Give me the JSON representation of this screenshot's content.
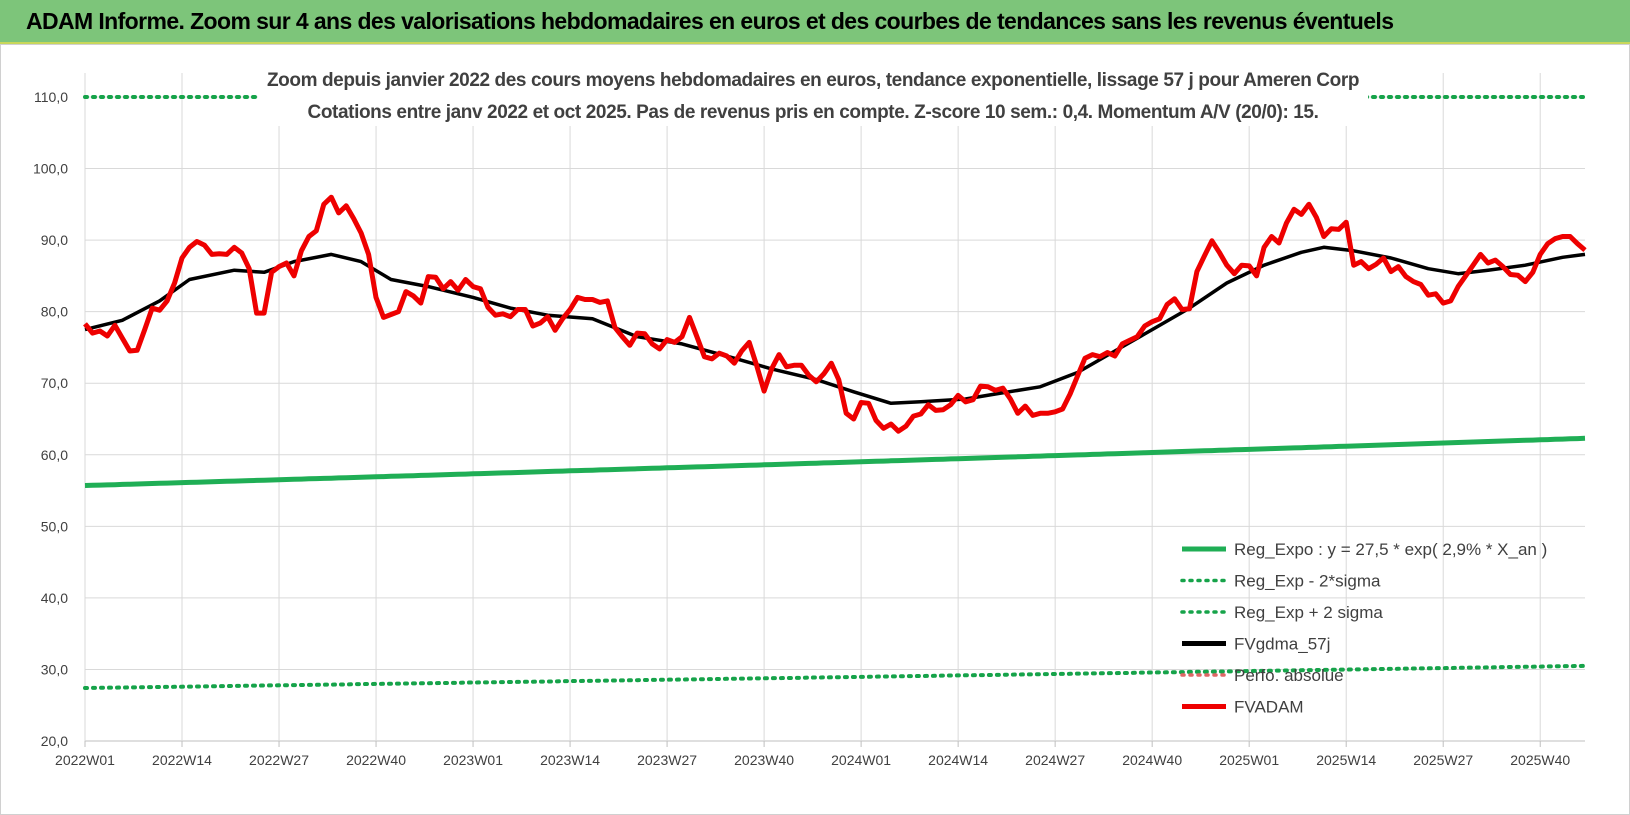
{
  "header": {
    "title": "ADAM Informe. Zoom sur 4 ans des valorisations hebdomadaires en euros et des courbes de tendances sans les revenus éventuels"
  },
  "chart_data": {
    "type": "line",
    "title_line1": "Zoom depuis janvier 2022 des cours moyens hebdomadaires en euros, tendance exponentielle, lissage 57 j pour Ameren Corp",
    "title_line2": "Cotations entre janv 2022 et oct 2025. Pas de revenus pris en compte. Z-score 10 sem.: 0,4. Momentum A/V (20/0): 15.",
    "ylim": [
      20,
      110
    ],
    "y_ticks": [
      "20,0",
      "30,0",
      "40,0",
      "50,0",
      "60,0",
      "70,0",
      "80,0",
      "90,0",
      "100,0",
      "110,0"
    ],
    "x_ticks": [
      "2022W01",
      "2022W14",
      "2022W27",
      "2022W40",
      "2023W01",
      "2023W14",
      "2023W27",
      "2023W40",
      "2024W01",
      "2024W14",
      "2024W27",
      "2024W40",
      "2025W01",
      "2025W14",
      "2025W27",
      "2025W40"
    ],
    "x_tick_weeks": [
      0,
      13,
      26,
      39,
      52,
      65,
      78,
      91,
      104,
      117,
      130,
      143,
      156,
      169,
      182,
      195
    ],
    "n_weeks": 202,
    "colors": {
      "reg": "#1fae55",
      "reg_dotted": "#16a34a",
      "fvgdma": "#000000",
      "perfo": "#e06666",
      "fvadam": "#ee0000",
      "grid": "#d9d9d9"
    },
    "series": [
      {
        "name": "Reg_Expo : y = 27,5 * exp( 2,9% * X_an )",
        "style": "solid",
        "color": "#1fae55",
        "start": 55.7,
        "end": 62.3
      },
      {
        "name": "Reg_Exp - 2*sigma",
        "style": "dotted",
        "color": "#16a34a",
        "start": 27.4,
        "end": 30.5
      },
      {
        "name": "Reg_Exp + 2 sigma",
        "style": "dotted",
        "color": "#16a34a",
        "start": 110.0,
        "end": 110.0
      },
      {
        "name": "FVgdma_57j",
        "style": "solid",
        "color": "#000000",
        "points": [
          [
            0,
            77.5
          ],
          [
            5,
            78.8
          ],
          [
            10,
            81.5
          ],
          [
            14,
            84.5
          ],
          [
            20,
            85.8
          ],
          [
            24,
            85.5
          ],
          [
            28,
            87.0
          ],
          [
            33,
            88.0
          ],
          [
            37,
            87.0
          ],
          [
            41,
            84.5
          ],
          [
            46,
            83.5
          ],
          [
            52,
            82.0
          ],
          [
            57,
            80.5
          ],
          [
            62,
            79.5
          ],
          [
            68,
            79.0
          ],
          [
            74,
            76.5
          ],
          [
            80,
            75.5
          ],
          [
            87,
            73.5
          ],
          [
            92,
            72.0
          ],
          [
            98,
            70.5
          ],
          [
            103,
            68.8
          ],
          [
            108,
            67.2
          ],
          [
            112,
            67.4
          ],
          [
            118,
            67.8
          ],
          [
            122,
            68.5
          ],
          [
            128,
            69.5
          ],
          [
            133,
            71.5
          ],
          [
            138,
            74.5
          ],
          [
            143,
            77.5
          ],
          [
            148,
            80.5
          ],
          [
            153,
            84.0
          ],
          [
            158,
            86.5
          ],
          [
            163,
            88.3
          ],
          [
            166,
            89.0
          ],
          [
            170,
            88.5
          ],
          [
            175,
            87.5
          ],
          [
            180,
            86.0
          ],
          [
            184,
            85.3
          ],
          [
            188,
            85.8
          ],
          [
            193,
            86.5
          ],
          [
            198,
            87.6
          ],
          [
            201,
            88.0
          ]
        ]
      },
      {
        "name": "Perfo. absolue",
        "style": "dotted",
        "color": "#e06666"
      },
      {
        "name": "FVADAM",
        "style": "solid",
        "color": "#ee0000",
        "points": [
          [
            0,
            78.3
          ],
          [
            1,
            77.0
          ],
          [
            2,
            77.3
          ],
          [
            3,
            76.6
          ],
          [
            4,
            78.1
          ],
          [
            5,
            76.3
          ],
          [
            6,
            74.5
          ],
          [
            7,
            74.6
          ],
          [
            8,
            77.5
          ],
          [
            9,
            80.5
          ],
          [
            10,
            80.2
          ],
          [
            11,
            81.5
          ],
          [
            12,
            84.0
          ],
          [
            13,
            87.5
          ],
          [
            14,
            89.0
          ],
          [
            15,
            89.8
          ],
          [
            16,
            89.3
          ],
          [
            17,
            88.0
          ],
          [
            18,
            88.1
          ],
          [
            19,
            88.0
          ],
          [
            20,
            89.0
          ],
          [
            21,
            88.2
          ],
          [
            22,
            86.0
          ],
          [
            23,
            79.8
          ],
          [
            24,
            79.8
          ],
          [
            25,
            85.5
          ],
          [
            26,
            86.3
          ],
          [
            27,
            86.8
          ],
          [
            28,
            85.0
          ],
          [
            29,
            88.5
          ],
          [
            30,
            90.5
          ],
          [
            31,
            91.3
          ],
          [
            32,
            95.0
          ],
          [
            33,
            96.0
          ],
          [
            34,
            93.8
          ],
          [
            35,
            94.8
          ],
          [
            36,
            93.0
          ],
          [
            37,
            91.0
          ],
          [
            38,
            88.0
          ],
          [
            39,
            82.0
          ],
          [
            40,
            79.2
          ],
          [
            41,
            79.6
          ],
          [
            42,
            80.0
          ],
          [
            43,
            82.8
          ],
          [
            44,
            82.2
          ],
          [
            45,
            81.2
          ],
          [
            46,
            84.9
          ],
          [
            47,
            84.8
          ],
          [
            48,
            83.2
          ],
          [
            49,
            84.2
          ],
          [
            50,
            83.0
          ],
          [
            51,
            84.5
          ],
          [
            52,
            83.5
          ],
          [
            53,
            83.2
          ],
          [
            54,
            80.6
          ],
          [
            55,
            79.5
          ],
          [
            56,
            79.7
          ],
          [
            57,
            79.3
          ],
          [
            58,
            80.3
          ],
          [
            59,
            80.3
          ],
          [
            60,
            78.0
          ],
          [
            61,
            78.4
          ],
          [
            62,
            79.3
          ],
          [
            63,
            77.4
          ],
          [
            64,
            79.0
          ],
          [
            65,
            80.3
          ],
          [
            66,
            82.0
          ],
          [
            67,
            81.7
          ],
          [
            68,
            81.7
          ],
          [
            69,
            81.3
          ],
          [
            70,
            81.5
          ],
          [
            71,
            77.8
          ],
          [
            72,
            76.5
          ],
          [
            73,
            75.3
          ],
          [
            74,
            77.0
          ],
          [
            75,
            76.9
          ],
          [
            76,
            75.5
          ],
          [
            77,
            74.8
          ],
          [
            78,
            76.1
          ],
          [
            79,
            75.7
          ],
          [
            80,
            76.5
          ],
          [
            81,
            79.2
          ],
          [
            82,
            76.5
          ],
          [
            83,
            73.7
          ],
          [
            84,
            73.4
          ],
          [
            85,
            74.2
          ],
          [
            86,
            73.8
          ],
          [
            87,
            72.8
          ],
          [
            88,
            74.5
          ],
          [
            89,
            75.7
          ],
          [
            90,
            72.5
          ],
          [
            91,
            68.9
          ],
          [
            92,
            72.0
          ],
          [
            93,
            74.0
          ],
          [
            94,
            72.3
          ],
          [
            95,
            72.5
          ],
          [
            96,
            72.5
          ],
          [
            97,
            71.1
          ],
          [
            98,
            70.2
          ],
          [
            99,
            71.3
          ],
          [
            100,
            72.8
          ],
          [
            101,
            70.5
          ],
          [
            102,
            65.8
          ],
          [
            103,
            65.0
          ],
          [
            104,
            67.3
          ],
          [
            105,
            67.2
          ],
          [
            106,
            64.8
          ],
          [
            107,
            63.7
          ],
          [
            108,
            64.3
          ],
          [
            109,
            63.3
          ],
          [
            110,
            64.0
          ],
          [
            111,
            65.4
          ],
          [
            112,
            65.7
          ],
          [
            113,
            67.0
          ],
          [
            114,
            66.2
          ],
          [
            115,
            66.3
          ],
          [
            116,
            67.0
          ],
          [
            117,
            68.3
          ],
          [
            118,
            67.4
          ],
          [
            119,
            67.7
          ],
          [
            120,
            69.6
          ],
          [
            121,
            69.5
          ],
          [
            122,
            69.0
          ],
          [
            123,
            69.3
          ],
          [
            124,
            67.8
          ],
          [
            125,
            65.8
          ],
          [
            126,
            66.8
          ],
          [
            127,
            65.5
          ],
          [
            128,
            65.8
          ],
          [
            129,
            65.8
          ],
          [
            130,
            66.0
          ],
          [
            131,
            66.4
          ],
          [
            132,
            68.5
          ],
          [
            133,
            71.0
          ],
          [
            134,
            73.5
          ],
          [
            135,
            74.0
          ],
          [
            136,
            73.7
          ],
          [
            137,
            74.3
          ],
          [
            138,
            73.8
          ],
          [
            139,
            75.5
          ],
          [
            140,
            76.0
          ],
          [
            141,
            76.5
          ],
          [
            142,
            78.0
          ],
          [
            143,
            78.6
          ],
          [
            144,
            79.0
          ],
          [
            145,
            81.0
          ],
          [
            146,
            81.8
          ],
          [
            147,
            80.3
          ],
          [
            148,
            80.4
          ],
          [
            149,
            85.6
          ],
          [
            150,
            87.8
          ],
          [
            151,
            89.9
          ],
          [
            152,
            88.3
          ],
          [
            153,
            86.5
          ],
          [
            154,
            85.3
          ],
          [
            155,
            86.5
          ],
          [
            156,
            86.4
          ],
          [
            157,
            85.0
          ],
          [
            158,
            89.0
          ],
          [
            159,
            90.5
          ],
          [
            160,
            89.6
          ],
          [
            161,
            92.4
          ],
          [
            162,
            94.3
          ],
          [
            163,
            93.6
          ],
          [
            164,
            95.0
          ],
          [
            165,
            93.2
          ],
          [
            166,
            90.5
          ],
          [
            167,
            91.6
          ],
          [
            168,
            91.5
          ],
          [
            169,
            92.5
          ],
          [
            170,
            86.5
          ],
          [
            171,
            87.0
          ],
          [
            172,
            86.0
          ],
          [
            173,
            86.6
          ],
          [
            174,
            87.5
          ],
          [
            175,
            85.6
          ],
          [
            176,
            86.3
          ],
          [
            177,
            84.9
          ],
          [
            178,
            84.2
          ],
          [
            179,
            83.8
          ],
          [
            180,
            82.3
          ],
          [
            181,
            82.5
          ],
          [
            182,
            81.2
          ],
          [
            183,
            81.5
          ],
          [
            184,
            83.5
          ],
          [
            185,
            85.0
          ],
          [
            186,
            86.5
          ],
          [
            187,
            88.0
          ],
          [
            188,
            86.8
          ],
          [
            189,
            87.2
          ],
          [
            190,
            86.3
          ],
          [
            191,
            85.2
          ],
          [
            192,
            85.1
          ],
          [
            193,
            84.2
          ],
          [
            194,
            85.5
          ],
          [
            195,
            88.0
          ],
          [
            196,
            89.5
          ],
          [
            197,
            90.2
          ],
          [
            198,
            90.5
          ],
          [
            199,
            90.5
          ],
          [
            200,
            89.5
          ],
          [
            201,
            88.6
          ]
        ]
      }
    ]
  }
}
